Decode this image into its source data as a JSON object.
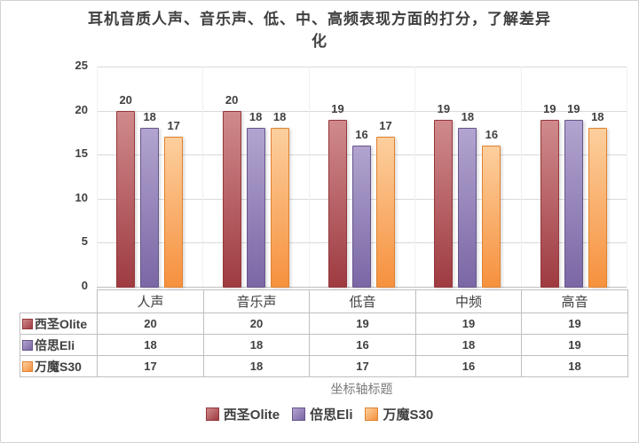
{
  "chart_data": {
    "type": "bar",
    "title": "耳机音质人声、音乐声、低、中、高频表现方面的打分，了解差异\n化",
    "categories": [
      "人声",
      "音乐声",
      "低音",
      "中频",
      "高音"
    ],
    "series": [
      {
        "name": "西圣Olite",
        "values": [
          20,
          20,
          19,
          19,
          19
        ]
      },
      {
        "name": "倍思Eli",
        "values": [
          18,
          18,
          16,
          18,
          19
        ]
      },
      {
        "name": "万魔S30",
        "values": [
          17,
          18,
          17,
          16,
          18
        ]
      }
    ],
    "ylim": [
      0,
      25
    ],
    "yticks": [
      0,
      5,
      10,
      15,
      20,
      25
    ],
    "axis_title": "坐标轴标题",
    "legend_position": "bottom",
    "grid": true,
    "data_table_shown": true
  },
  "styles": {
    "series_colors": [
      {
        "top": "#d08a8c",
        "bottom": "#9e3b41",
        "border": "#94383c",
        "marker": "#bd4b50"
      },
      {
        "top": "#b2a4cf",
        "bottom": "#7a67a5",
        "border": "#67558c",
        "marker": "#8872ae"
      },
      {
        "top": "#fccf9e",
        "bottom": "#f6913e",
        "border": "#e0822f",
        "marker": "#f9a254"
      }
    ],
    "text_color": "#404040",
    "grid_color": "#d9d9d9",
    "table_border_color": "#bfbfbf",
    "axis_title_color": "#7a7a7a"
  }
}
